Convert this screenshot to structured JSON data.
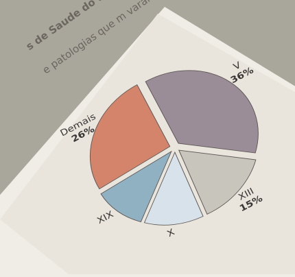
{
  "chart_data": {
    "type": "pie",
    "title": "s de Saude do Serv",
    "subtitle": "e patologias que m  varam às a",
    "categories": [
      "V",
      "XIII",
      "X",
      "XIX",
      "Demais"
    ],
    "values": [
      36,
      15,
      12,
      11,
      26
    ],
    "value_labels": [
      "36%",
      "15%",
      null,
      null,
      "26%"
    ],
    "colors": [
      "#9b8d97",
      "#c8c5bd",
      "#d8e2ea",
      "#8fb1c2",
      "#d4846b"
    ]
  }
}
